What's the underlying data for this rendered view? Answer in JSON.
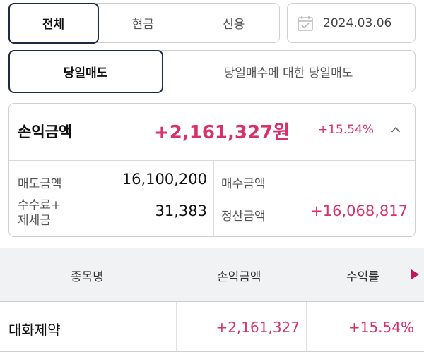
{
  "filters": {
    "type_options": [
      "전체",
      "현금",
      "신용"
    ],
    "type_selected": "전체",
    "date": "2024.03.06",
    "sell_options": [
      "당일매도",
      "당일매수에 대한 당일매도"
    ],
    "sell_selected": "당일매도"
  },
  "summary": {
    "pl_label": "손익금액",
    "pl_amount": "+2,161,327원",
    "pl_rate": "+15.54%",
    "sell_amount_label": "매도금액",
    "sell_amount": "16,100,200",
    "buy_amount_label": "매수금액",
    "buy_amount": "",
    "fees_label_1": "수수료+",
    "fees_label_2": "제세금",
    "fees": "31,383",
    "settlement_label": "정산금액",
    "settlement": "+16,068,817"
  },
  "table": {
    "headers": [
      "종목명",
      "손익금액",
      "수익률"
    ],
    "rows": [
      {
        "name": "대화제약",
        "pl": "+2,161,327",
        "rate": "+15.54%"
      }
    ]
  },
  "colors": {
    "accent": "#d6336c",
    "border_active": "#1f2a44"
  },
  "icons": {
    "date": "calendar-icon",
    "collapse": "chevron-up-icon",
    "more_columns": "triangle-right-icon"
  }
}
